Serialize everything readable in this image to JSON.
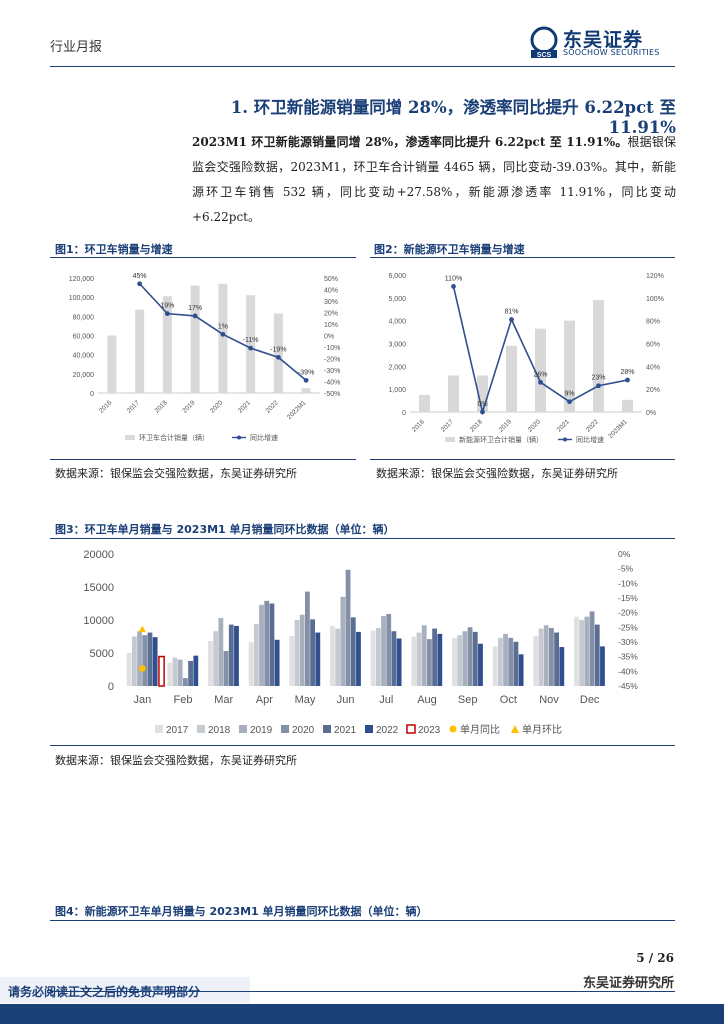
{
  "header": {
    "label": "行业月报",
    "logo_cn": "东吴证券",
    "logo_en": "SOOCHOW SECURITIES",
    "logo_mark": "SCS"
  },
  "section": {
    "heading": "1.  环卫新能源销量同增 28%，渗透率同比提升 6.22pct 至 11.91%"
  },
  "paragraph": {
    "lead": "2023M1 环卫新能源销量同增 28%，渗透率同比提升 6.22pct 至 11.91%。",
    "body": "根据银保监会交强险数据，2023M1，环卫车合计销量 4465 辆，同比变动-39.03%。其中，新能源环卫车销售 532 辆，同比变动+27.58%，新能源渗透率 11.91%，同比变动+6.22pct。"
  },
  "fig1": {
    "title": "图1：环卫车销量与增速",
    "source": "数据来源：银保监会交强险数据，东吴证券研究所"
  },
  "fig2": {
    "title": "图2：新能源环卫车销量与增速",
    "source": "数据来源：银保监会交强险数据，东吴证券研究所"
  },
  "fig3": {
    "title": "图3：环卫车单月销量与 2023M1 单月销量同环比数据（单位：辆）",
    "source": "数据来源：银保监会交强险数据，东吴证券研究所"
  },
  "fig4": {
    "title": "图4：新能源环卫车单月销量与 2023M1 单月销量同环比数据（单位：辆）"
  },
  "footer": {
    "page": "5 / 26",
    "company": "东吴证券研究所",
    "disclaimer": "请务必阅读正文之后的免责声明部分"
  },
  "colors": {
    "brand": "#1b3f77",
    "bar_gray": "#d9d9d9",
    "line_blue": "#2f4f8f",
    "yoy_marker": "#ffc000"
  },
  "chart_data": [
    {
      "type": "bar",
      "categories": [
        "2016",
        "2017",
        "2018",
        "2019",
        "2020",
        "2021",
        "2022",
        "2022M1"
      ],
      "series": [
        {
          "name": "环卫车合计销量（辆）",
          "type": "bar",
          "axis": "left",
          "values": [
            60000,
            87000,
            101000,
            112000,
            114000,
            102000,
            83000,
            5000
          ]
        },
        {
          "name": "同比增速",
          "type": "line",
          "axis": "right",
          "values": [
            null,
            45,
            19,
            17,
            1,
            -11,
            -19,
            -39
          ],
          "labels": [
            "",
            "45%",
            "19%",
            "17%",
            "1%",
            "-11%",
            "-19%",
            "-39%"
          ]
        }
      ],
      "ylim": [
        0,
        120000
      ],
      "y2lim": [
        -50,
        50
      ],
      "yticks": [
        "0",
        "20,000",
        "40,000",
        "60,000",
        "80,000",
        "100,000",
        "120,000"
      ],
      "y2ticks": [
        "-50%",
        "-40%",
        "-30%",
        "-20%",
        "-10%",
        "0%",
        "10%",
        "20%",
        "30%",
        "40%",
        "50%"
      ],
      "legend": "bottom"
    },
    {
      "type": "bar",
      "categories": [
        "2016",
        "2017",
        "2018",
        "2019",
        "2020",
        "2021",
        "2022",
        "2023M1"
      ],
      "series": [
        {
          "name": "新能源环卫合计销量（辆）",
          "type": "bar",
          "axis": "left",
          "values": [
            750,
            1600,
            1600,
            2900,
            3650,
            4000,
            4900,
            532
          ]
        },
        {
          "name": "同比增速",
          "type": "line",
          "axis": "right",
          "values": [
            null,
            110,
            0,
            81,
            26,
            9,
            23,
            28
          ],
          "labels": [
            "",
            "110%",
            "0%",
            "81%",
            "26%",
            "9%",
            "23%",
            "28%"
          ]
        }
      ],
      "ylim": [
        0,
        6000
      ],
      "y2lim": [
        0,
        120
      ],
      "yticks": [
        "0",
        "1,000",
        "2,000",
        "3,000",
        "4,000",
        "5,000",
        "6,000"
      ],
      "y2ticks": [
        "0%",
        "20%",
        "40%",
        "60%",
        "80%",
        "100%",
        "120%"
      ],
      "legend": "bottom"
    },
    {
      "type": "bar",
      "categories": [
        "Jan",
        "Feb",
        "Mar",
        "Apr",
        "May",
        "Jun",
        "Jul",
        "Aug",
        "Sep",
        "Oct",
        "Nov",
        "Dec"
      ],
      "series": [
        {
          "name": "2017",
          "values": [
            5000,
            3500,
            6800,
            6700,
            7600,
            9100,
            8400,
            7500,
            7300,
            6000,
            7600,
            10500
          ]
        },
        {
          "name": "2018",
          "values": [
            7500,
            4300,
            8300,
            9400,
            10000,
            8700,
            8800,
            8100,
            7700,
            7300,
            8700,
            10000
          ]
        },
        {
          "name": "2019",
          "values": [
            8300,
            4000,
            10300,
            12300,
            10800,
            13500,
            10600,
            9200,
            8300,
            7900,
            9200,
            10500
          ]
        },
        {
          "name": "2020",
          "values": [
            7700,
            1200,
            5300,
            12900,
            14300,
            17600,
            10900,
            7100,
            8900,
            7300,
            8800,
            11300
          ]
        },
        {
          "name": "2021",
          "values": [
            8100,
            3800,
            9300,
            12500,
            10100,
            10400,
            8300,
            8700,
            8200,
            6700,
            8100,
            9300
          ]
        },
        {
          "name": "2022",
          "values": [
            7400,
            4600,
            9100,
            7000,
            8100,
            8200,
            7200,
            7900,
            6400,
            4800,
            5900,
            6000
          ]
        },
        {
          "name": "2023",
          "values": [
            4465,
            null,
            null,
            null,
            null,
            null,
            null,
            null,
            null,
            null,
            null,
            null
          ]
        },
        {
          "name": "单月同比",
          "axis": "right",
          "values": [
            -39.03,
            null,
            null,
            null,
            null,
            null,
            null,
            null,
            null,
            null,
            null,
            null
          ]
        },
        {
          "name": "单月环比",
          "axis": "right",
          "values": [
            -25.6,
            null,
            null,
            null,
            null,
            null,
            null,
            null,
            null,
            null,
            null,
            null
          ]
        }
      ],
      "ylim": [
        0,
        20000
      ],
      "y2lim": [
        -45,
        0
      ],
      "yticks": [
        "0",
        "5000",
        "10000",
        "15000",
        "20000"
      ],
      "y2ticks": [
        "-45%",
        "-40%",
        "-35%",
        "-30%",
        "-25%",
        "-20%",
        "-15%",
        "-10%",
        "-5%",
        "0%"
      ],
      "colors": [
        "#e0e0e0",
        "#c5cad2",
        "#a8b0bd",
        "#8390a8",
        "#5a6e93",
        "#2f4f8f",
        "#c00000",
        "#ffc000",
        "#ffc000"
      ],
      "legend": "bottom"
    }
  ]
}
